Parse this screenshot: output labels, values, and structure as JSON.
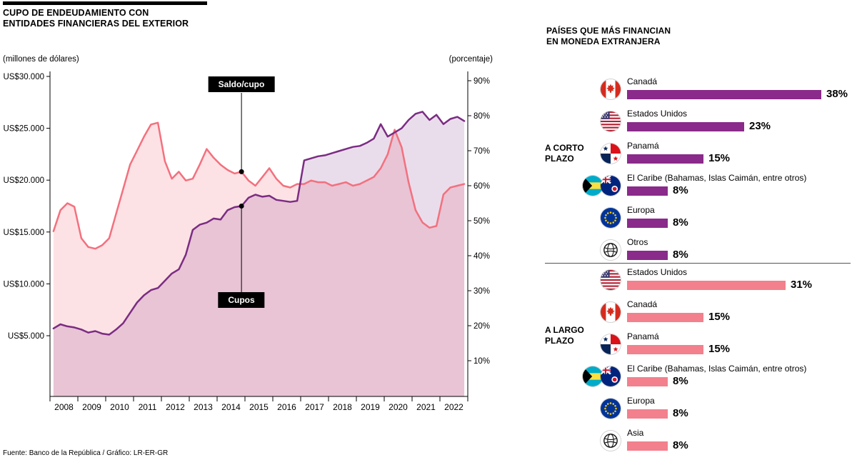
{
  "page": {
    "title_line1": "CUPO DE ENDEUDAMIENTO CON",
    "title_line2": "ENTIDADES FINANCIERAS DEL EXTERIOR",
    "source": "Fuente: Banco de la República / Gráfico: LR-ER-GR"
  },
  "chart": {
    "left_axis_unit": "(millones de dólares)",
    "right_axis_unit": "(porcentaje)",
    "left_ticks": [
      "US$30.000",
      "US$25.000",
      "US$20.000",
      "US$15.000",
      "US$10.000",
      "US$5.000"
    ],
    "right_ticks": [
      "90%",
      "80%",
      "70%",
      "60%",
      "50%",
      "40%",
      "30%",
      "20%",
      "10%"
    ],
    "years": [
      "2008",
      "2009",
      "2010",
      "2011",
      "2012",
      "2013",
      "2014",
      "2015",
      "2016",
      "2017",
      "2018",
      "2019",
      "2020",
      "2021",
      "2022"
    ],
    "series_labels": {
      "saldo": "Saldo/cupo",
      "cupos": "Cupos"
    }
  },
  "chart_data": {
    "type": "line",
    "title": "Cupo de endeudamiento con entidades financieras del exterior",
    "x_start": 2008,
    "x_step": 0.25,
    "x_tick_labels": [
      "2008",
      "2009",
      "2010",
      "2011",
      "2012",
      "2013",
      "2014",
      "2015",
      "2016",
      "2017",
      "2018",
      "2019",
      "2020",
      "2021",
      "2022"
    ],
    "left_axis": {
      "label": "(millones de dólares)",
      "tick_values": [
        5000,
        10000,
        15000,
        20000,
        25000,
        30000
      ]
    },
    "right_axis": {
      "label": "(porcentaje)",
      "tick_values": [
        10,
        20,
        30,
        40,
        50,
        60,
        70,
        80,
        90
      ],
      "range": [
        0,
        90
      ]
    },
    "grid": false,
    "series": [
      {
        "name": "Cupos",
        "axis": "left",
        "color": "#7B2C83",
        "fill": "rgba(123,44,131,0.16)",
        "values": [
          5700,
          6100,
          5900,
          5800,
          5600,
          5300,
          5450,
          5200,
          5100,
          5600,
          6200,
          7200,
          8200,
          8900,
          9400,
          9600,
          10300,
          11000,
          11400,
          12800,
          15200,
          15700,
          15900,
          16300,
          16200,
          17100,
          17400,
          17500,
          18300,
          18600,
          18400,
          18500,
          18100,
          18000,
          17900,
          18000,
          21900,
          22100,
          22300,
          22400,
          22600,
          22800,
          23000,
          23200,
          23300,
          23600,
          24000,
          25400,
          24200,
          24600,
          25000,
          25800,
          26400,
          26600,
          25800,
          26300,
          25400,
          25900,
          26100,
          25700
        ]
      },
      {
        "name": "Saldo/cupo",
        "axis": "right",
        "color": "#F3707E",
        "fill": "rgba(243,112,126,0.20)",
        "values": [
          47,
          53,
          55,
          54,
          45,
          42.5,
          42,
          43,
          45,
          52,
          59,
          66,
          70,
          74,
          77.5,
          78,
          67,
          62,
          64,
          61.5,
          62,
          66,
          70.5,
          68,
          66,
          64.5,
          63.5,
          64,
          61.5,
          60,
          62.5,
          65,
          62,
          60,
          59.5,
          60.5,
          60.5,
          61.5,
          61,
          61,
          60,
          60.5,
          61,
          60,
          60.5,
          61.5,
          62.5,
          65,
          69,
          76,
          71,
          61,
          53,
          49.5,
          48,
          48.5,
          57.5,
          59.5,
          60,
          60.5
        ]
      }
    ],
    "annotations": [
      {
        "label": "Saldo/cupo",
        "series": "Saldo/cupo",
        "at_x": 2014.75,
        "value": 64
      },
      {
        "label": "Cupos",
        "series": "Cupos",
        "at_x": 2014.75,
        "value": 17500
      }
    ]
  },
  "right_panel": {
    "title_line1": "PAÍSES QUE MÁS FINANCIAN",
    "title_line2": "EN MONEDA EXTRANJERA",
    "bar_unit": "%",
    "groups": [
      {
        "label": "A CORTO PLAZO",
        "bar_color": "#8A2A8A",
        "rows": [
          {
            "flags": [
              "canada"
            ],
            "label": "Canadá",
            "value": 38,
            "value_label": "38%"
          },
          {
            "flags": [
              "usa"
            ],
            "label": "Estados Unidos",
            "value": 23,
            "value_label": "23%"
          },
          {
            "flags": [
              "panama"
            ],
            "label": "Panamá",
            "value": 15,
            "value_label": "15%"
          },
          {
            "flags": [
              "bahamas",
              "cayman"
            ],
            "label": "El Caribe (Bahamas, Islas Caimán, entre otros)",
            "value": 8,
            "value_label": "8%"
          },
          {
            "flags": [
              "europe"
            ],
            "label": "Europa",
            "value": 8,
            "value_label": "8%"
          },
          {
            "flags": [
              "globe"
            ],
            "label": "Otros",
            "value": 8,
            "value_label": "8%"
          }
        ]
      },
      {
        "label": "A LARGO PLAZO",
        "bar_color": "#F3808D",
        "rows": [
          {
            "flags": [
              "usa"
            ],
            "label": "Estados Unidos",
            "value": 31,
            "value_label": "31%"
          },
          {
            "flags": [
              "canada"
            ],
            "label": "Canadá",
            "value": 15,
            "value_label": "15%"
          },
          {
            "flags": [
              "panama"
            ],
            "label": "Panamá",
            "value": 15,
            "value_label": "15%"
          },
          {
            "flags": [
              "bahamas",
              "cayman"
            ],
            "label": "El Caribe (Bahamas, Islas Caimán, entre otros)",
            "value": 8,
            "value_label": "8%"
          },
          {
            "flags": [
              "europe"
            ],
            "label": "Europa",
            "value": 8,
            "value_label": "8%"
          },
          {
            "flags": [
              "globe"
            ],
            "label": "Asia",
            "value": 8,
            "value_label": "8%"
          }
        ]
      }
    ]
  }
}
